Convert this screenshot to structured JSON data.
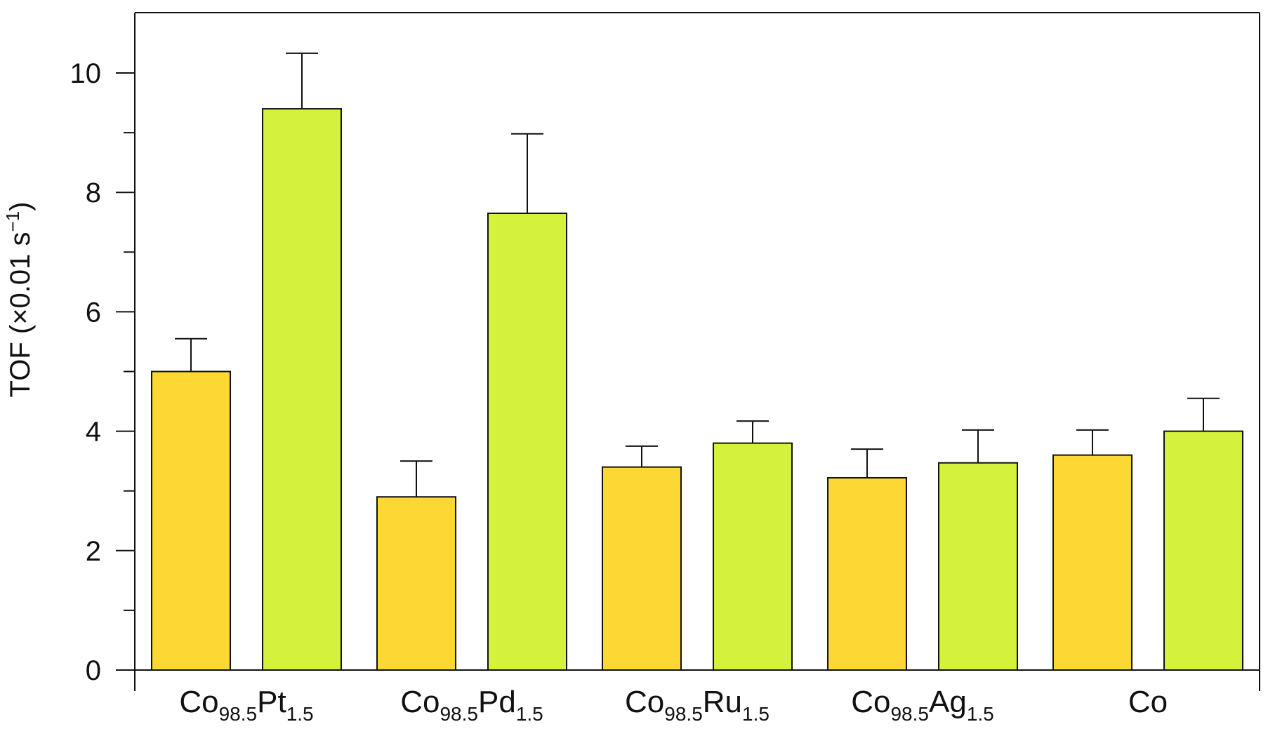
{
  "chart_data": {
    "type": "bar",
    "categories": [
      {
        "base": "Co",
        "sub1": "98.5",
        "el": "Pt",
        "sub2": "1.5"
      },
      {
        "base": "Co",
        "sub1": "98.5",
        "el": "Pd",
        "sub2": "1.5"
      },
      {
        "base": "Co",
        "sub1": "98.5",
        "el": "Ru",
        "sub2": "1.5"
      },
      {
        "base": "Co",
        "sub1": "98.5",
        "el": "Ag",
        "sub2": "1.5"
      },
      {
        "base": "Co",
        "sub1": "",
        "el": "",
        "sub2": ""
      }
    ],
    "series": [
      {
        "color": "#FDD835",
        "values": [
          5.0,
          2.9,
          3.4,
          3.22,
          3.6
        ],
        "errors": [
          0.55,
          0.6,
          0.35,
          0.48,
          0.42
        ]
      },
      {
        "color": "#D4F23C",
        "values": [
          9.4,
          7.65,
          3.8,
          3.47,
          4.0
        ],
        "errors": [
          0.93,
          1.33,
          0.37,
          0.55,
          0.55
        ]
      }
    ],
    "ylabel": {
      "main": "TOF (×0.01 s",
      "sup": "−1",
      "end": ")"
    },
    "ylim": [
      0,
      10.8
    ],
    "yticks_major": [
      0,
      2,
      4,
      6,
      8,
      10
    ],
    "yticks_minor": [
      1,
      3,
      5,
      7,
      9
    ],
    "xlabel": "",
    "title": "",
    "grid": false,
    "frame": "box"
  }
}
